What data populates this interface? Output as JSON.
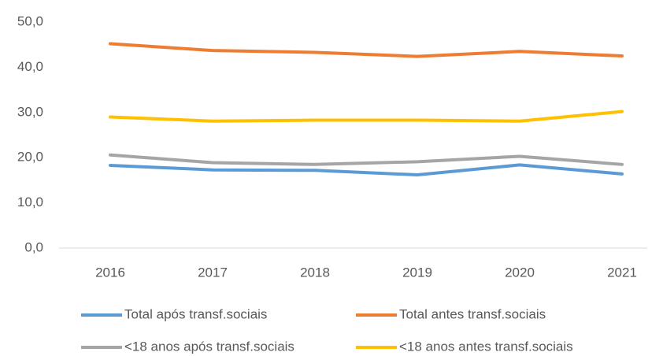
{
  "chart_data": {
    "type": "line",
    "categories": [
      "2016",
      "2017",
      "2018",
      "2019",
      "2020",
      "2021"
    ],
    "series": [
      {
        "name": "Total após transf.sociais",
        "color": "#5b9bd5",
        "values": [
          18.3,
          17.3,
          17.2,
          16.2,
          18.4,
          16.4
        ]
      },
      {
        "name": "Total antes transf.sociais",
        "color": "#ed7d31",
        "values": [
          45.2,
          43.7,
          43.3,
          42.4,
          43.5,
          42.5
        ]
      },
      {
        "name": "<18 anos após transf.sociais",
        "color": "#a5a5a5",
        "values": [
          20.6,
          18.9,
          18.5,
          19.1,
          20.3,
          18.5
        ]
      },
      {
        "name": "<18 anos antes transf.sociais",
        "color": "#ffc000",
        "values": [
          29.0,
          28.1,
          28.3,
          28.3,
          28.1,
          30.2
        ]
      }
    ],
    "ylim": [
      0,
      50
    ],
    "yticks": [
      {
        "value": 0,
        "label": "0,0"
      },
      {
        "value": 10,
        "label": "10,0"
      },
      {
        "value": 20,
        "label": "20,0"
      },
      {
        "value": 30,
        "label": "30,0"
      },
      {
        "value": 40,
        "label": "40,0"
      },
      {
        "value": 50,
        "label": "50,0"
      }
    ],
    "grid": false,
    "legend": "bottom"
  }
}
